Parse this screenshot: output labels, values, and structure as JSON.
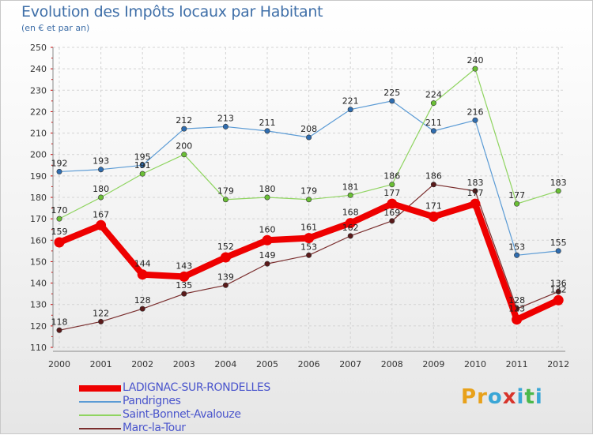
{
  "title": "Evolution des Impôts locaux par Habitant",
  "subtitle": "(en € et par an)",
  "logo": {
    "text": "Proxiti",
    "colors": [
      "#e8a11a",
      "#e8a11a",
      "#3aa6d6",
      "#d7342b",
      "#3aa6d6",
      "#4bb84b",
      "#3aa6d6"
    ]
  },
  "chart_data": {
    "type": "line",
    "title": "Evolution des Impôts locaux par Habitant",
    "subtitle": "(en € et par an)",
    "xlabel": "",
    "ylabel": "",
    "ylim": [
      110,
      250
    ],
    "yticks": [
      110,
      120,
      130,
      140,
      150,
      160,
      170,
      180,
      190,
      200,
      210,
      220,
      230,
      240,
      250
    ],
    "grid": true,
    "legend_position": "bottom-left",
    "x": [
      "2000",
      "2001",
      "2002",
      "2003",
      "2004",
      "2005",
      "2006",
      "2007",
      "2008",
      "2009",
      "2010",
      "2011",
      "2012"
    ],
    "series": [
      {
        "name": "Pandrignes",
        "color": "#5b9bd5",
        "point_color": "#2f6db0",
        "values": [
          192,
          193,
          195,
          212,
          213,
          211,
          208,
          221,
          225,
          211,
          216,
          153,
          155
        ]
      },
      {
        "name": "Saint-Bonnet-Avalouze",
        "color": "#8fd460",
        "point_color": "#6abf35",
        "values": [
          170,
          180,
          191,
          200,
          179,
          180,
          179,
          181,
          186,
          224,
          240,
          177,
          183
        ]
      },
      {
        "name": "Marc-la-Tour",
        "color": "#7a2e2e",
        "point_color": "#5a1a1a",
        "values": [
          118,
          122,
          128,
          135,
          139,
          149,
          153,
          162,
          169,
          186,
          183,
          128,
          136
        ]
      },
      {
        "name": "LADIGNAC-SUR-RONDELLES",
        "color": "#ee0000",
        "point_color": "#ee0000",
        "values": [
          159,
          167,
          144,
          143,
          152,
          160,
          161,
          168,
          177,
          171,
          177,
          123,
          132
        ]
      }
    ]
  }
}
